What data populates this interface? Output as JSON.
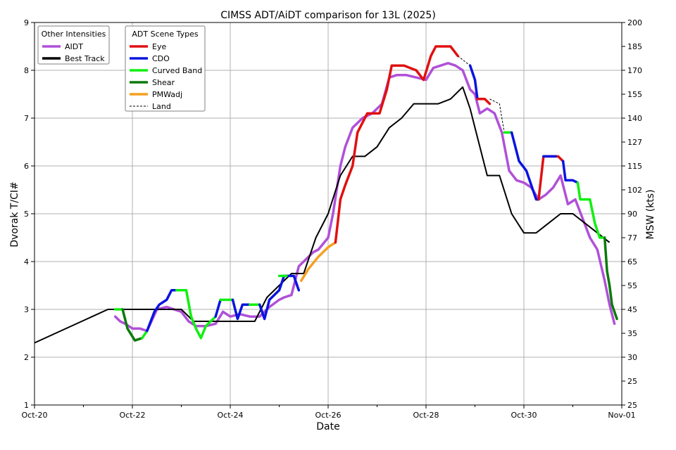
{
  "chart_data": {
    "type": "line",
    "title": "CIMSS ADT/AiDT comparison for 13L (2025)",
    "xlabel": "Date",
    "ylabel": "Dvorak T/CI#",
    "ylabel_right": "MSW (kts)",
    "xlim": [
      0,
      11
    ],
    "ylim": [
      1,
      9
    ],
    "x_ticks": [
      0,
      2,
      4,
      6,
      8,
      10
    ],
    "x_tick_labels": [
      "Oct-20",
      "Oct-22",
      "Oct-24",
      "Oct-26",
      "Oct-28",
      "Oct-30",
      "Nov-01"
    ],
    "x_tick_values": [
      0,
      2,
      4,
      6,
      8,
      10,
      12
    ],
    "y_ticks": [
      1,
      2,
      3,
      4,
      5,
      6,
      7,
      8,
      9
    ],
    "y_tick_labels": [
      "1",
      "2",
      "3",
      "4",
      "5",
      "6",
      "7",
      "8",
      "9"
    ],
    "y2_ticks": [
      {
        "t": 1.0,
        "label": "25"
      },
      {
        "t": 1.5,
        "label": "25"
      },
      {
        "t": 2.0,
        "label": "30"
      },
      {
        "t": 2.5,
        "label": "35"
      },
      {
        "t": 3.0,
        "label": "45"
      },
      {
        "t": 3.5,
        "label": "55"
      },
      {
        "t": 4.0,
        "label": "65"
      },
      {
        "t": 4.5,
        "label": "77"
      },
      {
        "t": 5.0,
        "label": "90"
      },
      {
        "t": 5.5,
        "label": "102"
      },
      {
        "t": 6.0,
        "label": "115"
      },
      {
        "t": 6.5,
        "label": "127"
      },
      {
        "t": 7.0,
        "label": "140"
      },
      {
        "t": 7.5,
        "label": "155"
      },
      {
        "t": 8.0,
        "label": "170"
      },
      {
        "t": 8.5,
        "label": "185"
      },
      {
        "t": 9.0,
        "label": "200"
      }
    ],
    "grid": true,
    "legend_other": {
      "title": "Other Intensities",
      "placement": "top-left",
      "entries": [
        {
          "label": "AIDT",
          "color": "#b050d8"
        },
        {
          "label": "Best Track",
          "color": "#000000"
        }
      ]
    },
    "legend_adt": {
      "title": "ADT Scene Types",
      "placement": "top-left",
      "entries": [
        {
          "label": "Eye",
          "color": "#e01010"
        },
        {
          "label": "CDO",
          "color": "#0a14e0"
        },
        {
          "label": "Curved Band",
          "color": "#10f010"
        },
        {
          "label": "Shear",
          "color": "#0a7a0a"
        },
        {
          "label": "PMWadj",
          "color": "#f5a020"
        },
        {
          "label": "Land",
          "color": "#000000",
          "dashed": true
        }
      ]
    },
    "series": [
      {
        "name": "Best Track",
        "color": "#000000",
        "x": [
          0,
          1.5,
          1.75,
          2.0,
          2.5,
          3.0,
          3.25,
          3.5,
          4.0,
          4.5,
          4.75,
          5.0,
          5.25,
          5.5,
          5.75,
          6.0,
          6.25,
          6.5,
          6.75,
          7.0,
          7.25,
          7.5,
          7.75,
          8.0,
          8.25,
          8.5,
          8.75,
          8.9,
          9.0,
          9.25,
          9.5,
          9.75,
          10.0,
          10.25,
          10.5,
          10.75,
          11.0,
          11.25,
          11.5,
          11.75
        ],
        "y": [
          2.3,
          3.0,
          3.0,
          3.0,
          3.0,
          3.0,
          2.75,
          2.75,
          2.75,
          2.75,
          3.25,
          3.5,
          3.75,
          3.75,
          4.5,
          5.0,
          5.8,
          6.2,
          6.2,
          6.4,
          6.8,
          7.0,
          7.3,
          7.3,
          7.3,
          7.4,
          7.65,
          7.2,
          6.8,
          5.8,
          5.8,
          5.0,
          4.6,
          4.6,
          4.8,
          5.0,
          5.0,
          4.8,
          4.6,
          4.4
        ]
      },
      {
        "name": "AIDT",
        "color": "#b050d8",
        "x": [
          1.65,
          1.75,
          1.85,
          2.0,
          2.15,
          2.3,
          2.5,
          2.7,
          2.85,
          3.0,
          3.15,
          3.3,
          3.5,
          3.7,
          3.85,
          4.0,
          4.2,
          4.4,
          4.6,
          4.8,
          5.0,
          5.1,
          5.25,
          5.4,
          5.55,
          5.7,
          5.8,
          6.0,
          6.1,
          6.25,
          6.35,
          6.5,
          6.7,
          6.9,
          7.1,
          7.25,
          7.4,
          7.6,
          7.8,
          8.0,
          8.15,
          8.3,
          8.45,
          8.6,
          8.75,
          8.9,
          9.0,
          9.1,
          9.25,
          9.4,
          9.55,
          9.7,
          9.85,
          10.0,
          10.15,
          10.3,
          10.45,
          10.6,
          10.75,
          10.9,
          11.05,
          11.2,
          11.35,
          11.5,
          11.65,
          11.75,
          11.85
        ],
        "y": [
          2.85,
          2.75,
          2.7,
          2.6,
          2.6,
          2.55,
          3.0,
          3.05,
          3.0,
          2.95,
          2.75,
          2.65,
          2.65,
          2.7,
          2.95,
          2.85,
          2.9,
          2.85,
          2.85,
          3.05,
          3.2,
          3.25,
          3.3,
          3.9,
          4.05,
          4.2,
          4.25,
          4.5,
          5.0,
          6.0,
          6.4,
          6.8,
          7.0,
          7.1,
          7.3,
          7.85,
          7.9,
          7.9,
          7.85,
          7.8,
          8.05,
          8.1,
          8.15,
          8.1,
          8.0,
          7.6,
          7.5,
          7.1,
          7.2,
          7.1,
          6.7,
          5.9,
          5.7,
          5.65,
          5.55,
          5.3,
          5.4,
          5.55,
          5.8,
          5.2,
          5.3,
          4.9,
          4.5,
          4.25,
          3.6,
          3.1,
          2.7
        ]
      }
    ],
    "adt_segments": [
      {
        "scene": "Curved Band",
        "color": "#10f010",
        "x": [
          1.65,
          1.8
        ],
        "y": [
          3.0,
          3.0
        ]
      },
      {
        "scene": "Shear",
        "color": "#0a7a0a",
        "x": [
          1.8,
          1.9,
          2.05,
          2.2
        ],
        "y": [
          3.0,
          2.6,
          2.35,
          2.4
        ]
      },
      {
        "scene": "Curved Band",
        "color": "#10f010",
        "x": [
          2.2,
          2.3
        ],
        "y": [
          2.4,
          2.55
        ]
      },
      {
        "scene": "CDO",
        "color": "#0a14e0",
        "x": [
          2.3,
          2.45,
          2.55,
          2.7,
          2.8,
          2.9
        ],
        "y": [
          2.55,
          2.95,
          3.1,
          3.2,
          3.4,
          3.4
        ]
      },
      {
        "scene": "Curved Band",
        "color": "#10f010",
        "x": [
          2.9,
          3.1,
          3.2,
          3.3,
          3.4,
          3.5
        ],
        "y": [
          3.4,
          3.4,
          2.85,
          2.6,
          2.4,
          2.65
        ]
      },
      {
        "scene": "Curved Band",
        "color": "#10f010",
        "x": [
          3.5,
          3.7
        ],
        "y": [
          2.65,
          2.85
        ]
      },
      {
        "scene": "CDO",
        "color": "#0a14e0",
        "x": [
          3.7,
          3.8
        ],
        "y": [
          2.85,
          3.2
        ]
      },
      {
        "scene": "Curved Band",
        "color": "#10f010",
        "x": [
          3.8,
          4.05
        ],
        "y": [
          3.2,
          3.2
        ]
      },
      {
        "scene": "CDO",
        "color": "#0a14e0",
        "x": [
          4.05,
          4.15,
          4.25,
          4.4
        ],
        "y": [
          3.2,
          2.8,
          3.1,
          3.1
        ]
      },
      {
        "scene": "Curved Band",
        "color": "#10f010",
        "x": [
          4.4,
          4.6
        ],
        "y": [
          3.1,
          3.1
        ]
      },
      {
        "scene": "CDO",
        "color": "#0a14e0",
        "x": [
          4.6,
          4.7,
          4.8,
          5.0,
          5.1,
          5.3,
          5.4
        ],
        "y": [
          3.1,
          2.8,
          3.2,
          3.4,
          3.7,
          3.7,
          3.4
        ]
      },
      {
        "scene": "Curved Band",
        "color": "#10f010",
        "x": [
          5.0,
          5.15
        ],
        "y": [
          3.7,
          3.7
        ]
      },
      {
        "scene": "PMWadj",
        "color": "#f5a020",
        "x": [
          5.45,
          5.6,
          5.8,
          6.0,
          6.15
        ],
        "y": [
          3.6,
          3.85,
          4.1,
          4.3,
          4.4
        ]
      },
      {
        "scene": "Eye",
        "color": "#e01010",
        "x": [
          6.15,
          6.25,
          6.35,
          6.5,
          6.6,
          6.8,
          7.05,
          7.2,
          7.3,
          7.55,
          7.8,
          7.95,
          8.1,
          8.2,
          8.35,
          8.5,
          8.65
        ],
        "y": [
          4.4,
          5.3,
          5.6,
          6.0,
          6.7,
          7.1,
          7.1,
          7.6,
          8.1,
          8.1,
          8.0,
          7.8,
          8.3,
          8.5,
          8.5,
          8.5,
          8.3
        ]
      },
      {
        "scene": "CDO",
        "color": "#0a14e0",
        "x": [
          8.9,
          9.0,
          9.05
        ],
        "y": [
          8.1,
          7.8,
          7.4
        ]
      },
      {
        "scene": "Eye",
        "color": "#e01010",
        "x": [
          9.05,
          9.2,
          9.3
        ],
        "y": [
          7.4,
          7.4,
          7.3
        ]
      },
      {
        "scene": "Curved Band",
        "color": "#10f010",
        "x": [
          9.6,
          9.75
        ],
        "y": [
          6.7,
          6.7
        ]
      },
      {
        "scene": "CDO",
        "color": "#0a14e0",
        "x": [
          9.75,
          9.9,
          10.05,
          10.25,
          10.3
        ],
        "y": [
          6.7,
          6.1,
          5.9,
          5.3,
          5.3
        ]
      },
      {
        "scene": "Eye",
        "color": "#e01010",
        "x": [
          10.3,
          10.4,
          10.7,
          10.8
        ],
        "y": [
          5.3,
          6.2,
          6.2,
          6.1
        ]
      },
      {
        "scene": "CDO",
        "color": "#0a14e0",
        "x": [
          10.4,
          10.65
        ],
        "y": [
          6.2,
          6.2
        ]
      },
      {
        "scene": "CDO",
        "color": "#0a14e0",
        "x": [
          10.8,
          10.85,
          11.0,
          11.1
        ],
        "y": [
          6.1,
          5.7,
          5.7,
          5.65
        ]
      },
      {
        "scene": "Curved Band",
        "color": "#10f010",
        "x": [
          11.1,
          11.15,
          11.35,
          11.45,
          11.55,
          11.65
        ],
        "y": [
          5.65,
          5.3,
          5.3,
          4.8,
          4.5,
          4.5
        ]
      },
      {
        "scene": "Shear",
        "color": "#0a7a0a",
        "x": [
          11.65,
          11.7,
          11.75,
          11.8,
          11.9
        ],
        "y": [
          4.5,
          3.8,
          3.5,
          3.1,
          2.8
        ]
      }
    ],
    "land_segments": [
      {
        "x": [
          8.65,
          8.9
        ],
        "y": [
          8.3,
          8.1
        ]
      },
      {
        "x": [
          9.3,
          9.5,
          9.6
        ],
        "y": [
          7.4,
          7.3,
          6.7
        ]
      }
    ]
  }
}
